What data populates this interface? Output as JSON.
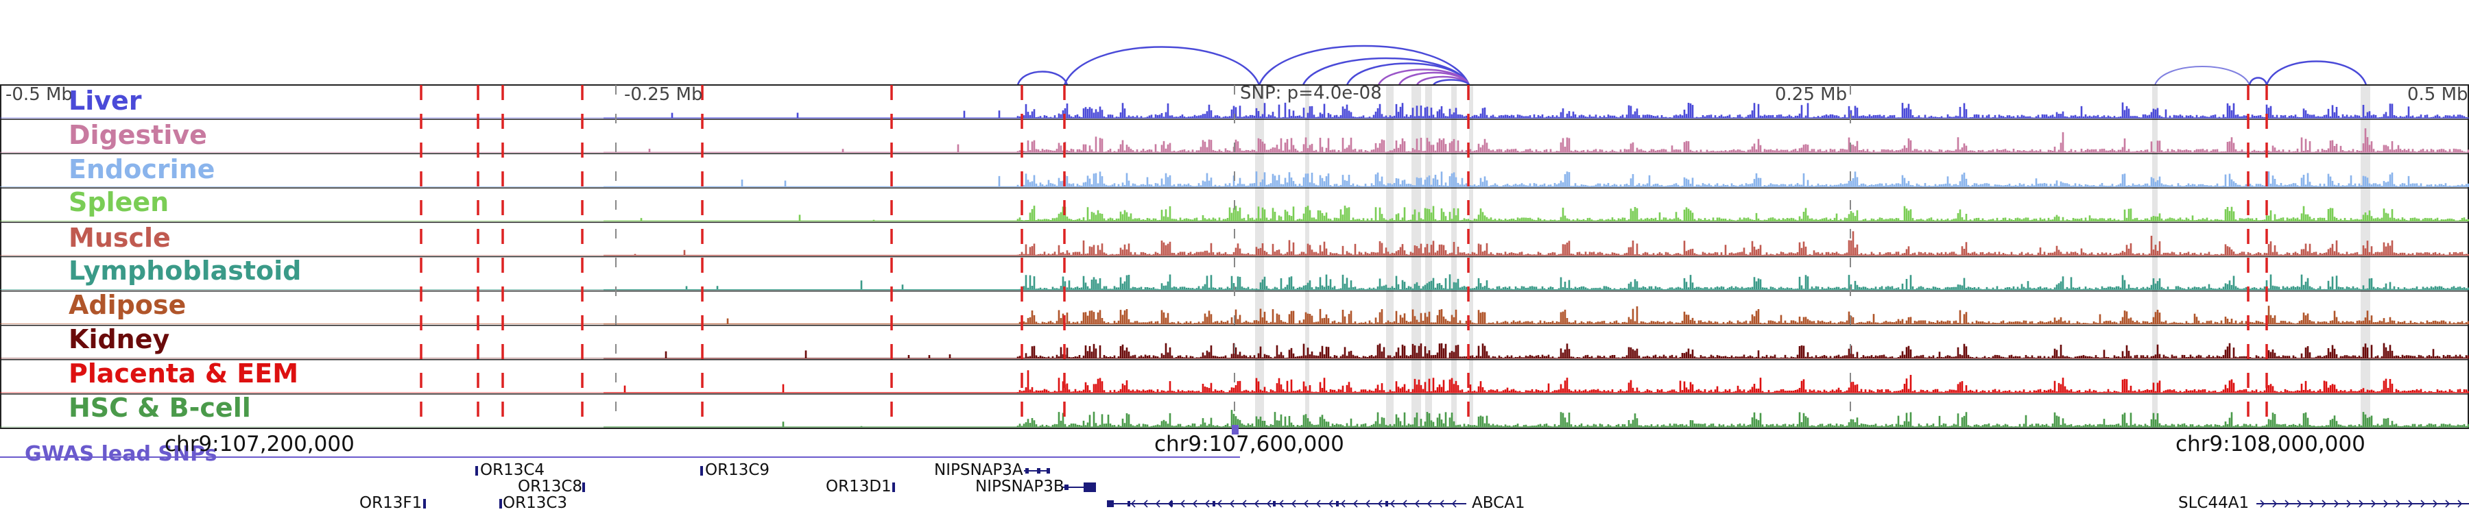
{
  "colors": {
    "highlight": "#d0d0d0",
    "boundary": "#dd2222",
    "loop": "#4a4ad8",
    "loop_alt": "#9a55c8",
    "loop_light": "#8080e0",
    "gwas": "#6a5acd",
    "gene": "#1a1a7a"
  },
  "scale": {
    "left_label": "-0.5 Mb",
    "mid_left_label": "-0.25 Mb",
    "snp_label": "SNP: p=4.0e-08",
    "mid_right_label": "0.25 Mb",
    "right_label": "0.5 Mb"
  },
  "tracks": [
    {
      "label": "Liver",
      "color": "#4a4ad8"
    },
    {
      "label": "Digestive",
      "color": "#c87aa0"
    },
    {
      "label": "Endocrine",
      "color": "#8ab4ec"
    },
    {
      "label": "Spleen",
      "color": "#7acd55"
    },
    {
      "label": "Muscle",
      "color": "#c05a50"
    },
    {
      "label": "Lymphoblastoid",
      "color": "#3a9a88"
    },
    {
      "label": "Adipose",
      "color": "#b0552a"
    },
    {
      "label": "Kidney",
      "color": "#6a0a0a"
    },
    {
      "label": "Placenta & EEM",
      "color": "#dd1010"
    },
    {
      "label": "HSC & B-cell",
      "color": "#4a9a4a"
    }
  ],
  "coordinates": [
    "chr9:107,200,000",
    "chr9:107,600,000",
    "chr9:108,000,000"
  ],
  "gwas_label": "GWAS lead SNPs",
  "genes": [
    {
      "name": "OR13C4"
    },
    {
      "name": "OR13C9"
    },
    {
      "name": "NIPSNAP3A"
    },
    {
      "name": "OR13C8"
    },
    {
      "name": "OR13D1"
    },
    {
      "name": "NIPSNAP3B"
    },
    {
      "name": "OR13F1"
    },
    {
      "name": "OR13C3"
    },
    {
      "name": "ABCA1"
    },
    {
      "name": "SLC44A1"
    }
  ]
}
